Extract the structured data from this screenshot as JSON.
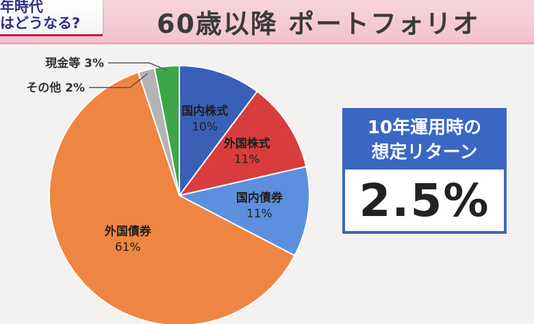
{
  "header": {
    "title": "60歳以降 ポートフォリオ",
    "corner_line1": "年時代",
    "corner_line2": "はどうなる?"
  },
  "return_box": {
    "line1": "10年運用時の",
    "line2": "想定リターン",
    "value": "2.5%"
  },
  "chart_data": {
    "type": "pie",
    "title": "60歳以降 ポートフォリオ",
    "slices": [
      {
        "label": "国内株式",
        "value": 10,
        "value_label": "10%",
        "color": "#3a5fb6"
      },
      {
        "label": "外国株式",
        "value": 11,
        "value_label": "11%",
        "color": "#d93c3c"
      },
      {
        "label": "国内債券",
        "value": 11,
        "value_label": "11%",
        "color": "#5d8fdf"
      },
      {
        "label": "外国債券",
        "value": 61,
        "value_label": "61%",
        "color": "#ef8542"
      },
      {
        "label": "その他",
        "value": 2,
        "value_label": "2%",
        "color": "#b3b3b3"
      },
      {
        "label": "現金等",
        "value": 3,
        "value_label": "3%",
        "color": "#3ea64a"
      }
    ]
  }
}
